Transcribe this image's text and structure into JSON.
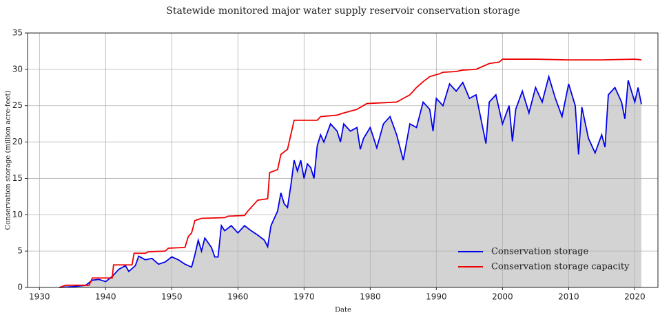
{
  "chart_data": {
    "type": "line",
    "title": "Statewide monitored major water supply reservoir conservation storage",
    "x_label": "Date",
    "y_label": "Conservation storage (million acre-feet)",
    "xlim": [
      1928.2,
      2023.5
    ],
    "ylim": [
      0,
      35
    ],
    "xticks": [
      1930,
      1940,
      1950,
      1960,
      1970,
      1980,
      1990,
      2000,
      2010,
      2020
    ],
    "yticks": [
      0,
      5,
      10,
      15,
      20,
      25,
      30,
      35
    ],
    "grid": true,
    "legend": "lower right",
    "area_fill": "#d3d3d3",
    "series": [
      {
        "name": "Conservation storage",
        "color": "#0000ee",
        "filled": true,
        "x": [
          1933,
          1935,
          1937,
          1938,
          1939,
          1940,
          1941,
          1942,
          1943,
          1943.5,
          1944.5,
          1945,
          1946,
          1947,
          1948,
          1949,
          1950,
          1951,
          1952,
          1953,
          1953.5,
          1954,
          1954.5,
          1955,
          1956,
          1956.5,
          1957,
          1957.5,
          1958,
          1959,
          1960,
          1961,
          1962,
          1963,
          1964,
          1964.5,
          1965,
          1966,
          1966.5,
          1967,
          1967.5,
          1968,
          1968.5,
          1969,
          1969.5,
          1970,
          1970.5,
          1971,
          1971.5,
          1972,
          1972.5,
          1973,
          1974,
          1975,
          1975.5,
          1976,
          1977,
          1978,
          1978.5,
          1979,
          1980,
          1981,
          1982,
          1983,
          1984,
          1985,
          1986,
          1987,
          1988,
          1989,
          1989.5,
          1990,
          1991,
          1992,
          1993,
          1994,
          1995,
          1996,
          1997.5,
          1998,
          1999,
          2000,
          2001,
          2001.5,
          2002,
          2003,
          2004,
          2005,
          2006,
          2007,
          2008,
          2009,
          2010,
          2011,
          2011.5,
          2012,
          2013,
          2014,
          2015,
          2015.5,
          2016,
          2017,
          2018,
          2018.5,
          2019,
          2020,
          2020.5,
          2021
        ],
        "values": [
          0,
          0.1,
          0.3,
          1.0,
          1.1,
          0.8,
          1.5,
          2.5,
          3.0,
          2.2,
          3.0,
          4.3,
          3.8,
          4.0,
          3.2,
          3.5,
          4.2,
          3.8,
          3.2,
          2.8,
          4.5,
          6.5,
          5.0,
          6.8,
          5.5,
          4.2,
          4.2,
          8.5,
          7.8,
          8.5,
          7.5,
          8.5,
          7.8,
          7.2,
          6.5,
          5.6,
          8.5,
          10.5,
          13.0,
          11.5,
          11.0,
          14.0,
          17.5,
          16.0,
          17.5,
          15.0,
          17.0,
          16.5,
          15.0,
          19.5,
          21.0,
          20.0,
          22.5,
          21.5,
          20.0,
          22.5,
          21.5,
          22.0,
          19.0,
          20.5,
          22.0,
          19.2,
          22.5,
          23.5,
          21.0,
          17.5,
          22.5,
          22.0,
          25.5,
          24.5,
          21.5,
          26.0,
          25.0,
          28.0,
          27.0,
          28.2,
          26.0,
          26.5,
          19.8,
          25.5,
          26.5,
          22.5,
          25.0,
          20.1,
          24.5,
          27.0,
          24.0,
          27.5,
          25.5,
          29.0,
          26.0,
          23.5,
          28.0,
          25.0,
          18.3,
          24.8,
          20.5,
          18.5,
          21.0,
          19.3,
          26.5,
          27.5,
          25.5,
          23.2,
          28.5,
          25.5,
          27.5,
          25.2
        ]
      },
      {
        "name": "Conservation storage capacity",
        "color": "#ee0000",
        "filled": false,
        "x": [
          1933,
          1934,
          1937.5,
          1938,
          1941,
          1941.2,
          1944,
          1944.3,
          1946,
          1946.5,
          1949,
          1949.5,
          1952,
          1952.5,
          1953,
          1953.5,
          1954.5,
          1958,
          1958.5,
          1961,
          1961.5,
          1962.5,
          1963,
          1964.5,
          1964.8,
          1966,
          1966.5,
          1967.5,
          1968,
          1968.5,
          1972,
          1972.5,
          1975,
          1976,
          1978,
          1979.5,
          1984,
          1985,
          1986,
          1987,
          1988,
          1989,
          1990.5,
          1991,
          1993,
          1994,
          1996,
          1997,
          1998,
          1999.5,
          2000,
          2005,
          2010,
          2015,
          2020,
          2021
        ],
        "values": [
          0,
          0.3,
          0.3,
          1.3,
          1.3,
          3.1,
          3.1,
          4.7,
          4.7,
          4.9,
          5.0,
          5.4,
          5.5,
          7.0,
          7.5,
          9.2,
          9.5,
          9.6,
          9.8,
          9.9,
          10.5,
          11.5,
          12.0,
          12.2,
          15.8,
          16.2,
          18.3,
          19.0,
          21.0,
          23.0,
          23.0,
          23.5,
          23.7,
          24.0,
          24.5,
          25.3,
          25.5,
          26.0,
          26.5,
          27.5,
          28.3,
          29.0,
          29.4,
          29.6,
          29.7,
          29.9,
          30.0,
          30.4,
          30.8,
          31.0,
          31.4,
          31.4,
          31.3,
          31.3,
          31.4,
          31.3
        ]
      }
    ]
  }
}
